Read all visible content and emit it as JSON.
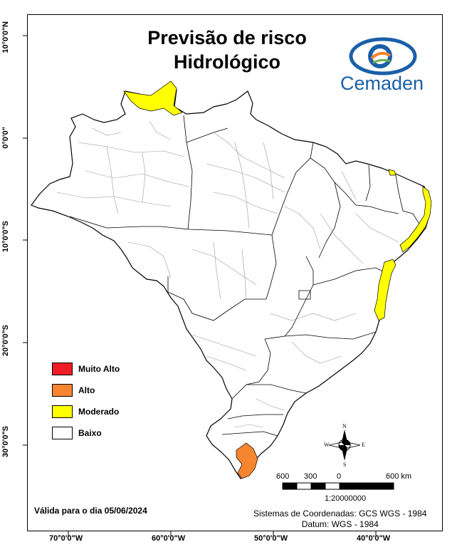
{
  "title": {
    "line1": "Previsão de risco",
    "line2": "Hidrológico"
  },
  "logo": {
    "text": "Cemaden"
  },
  "latitude_labels": [
    "10°0'0\"N",
    "0°0'0\"",
    "10°0'0\"S",
    "20°0'0\"S",
    "30°0'0\"S"
  ],
  "longitude_labels": [
    "70°0'0\"W",
    "60°0'0\"W",
    "50°0'0\"W",
    "40°0'0\"W"
  ],
  "legend": [
    {
      "label": "Muito Alto",
      "color": "#ee1c25"
    },
    {
      "label": "Alto",
      "color": "#f7852f"
    },
    {
      "label": "Moderado",
      "color": "#ffff00"
    },
    {
      "label": "Baixo",
      "color": "#ffffff"
    }
  ],
  "valid_text": "Válida para o dia 05/06/2024",
  "crs": {
    "line1": "Sistemas de Coordenadas: GCS WGS - 1984",
    "line2": "Datum: WGS - 1984"
  },
  "scale": {
    "labels": [
      "600",
      "300",
      "0",
      "600 km"
    ],
    "ratio": "1:20000000"
  },
  "compass": {
    "n": "N",
    "s": "S",
    "e": "E",
    "w": "W"
  }
}
